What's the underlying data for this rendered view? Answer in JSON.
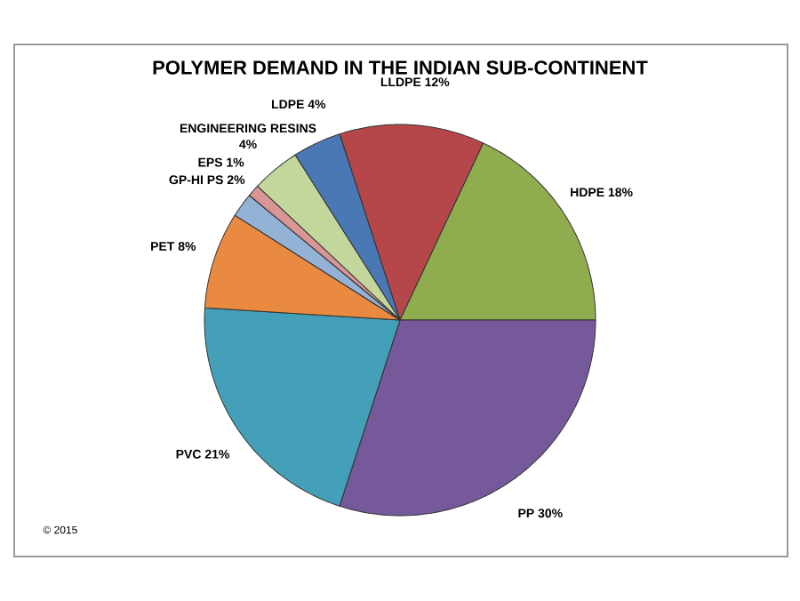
{
  "chart_data": {
    "type": "pie",
    "title": "POLYMER DEMAND IN THE INDIAN SUB-CONTINENT",
    "categories": [
      "LLDPE",
      "HDPE",
      "PP",
      "PVC",
      "PET",
      "GP-HI PS",
      "EPS",
      "ENGINEERING RESINS",
      "LDPE"
    ],
    "values": [
      12,
      18,
      30,
      21,
      8,
      2,
      1,
      4,
      4
    ],
    "value_labels": [
      "12%",
      "18%",
      "30%",
      "21%",
      "8%",
      "2%",
      "1%",
      "4%",
      "4%"
    ],
    "colors": [
      "#b5474a",
      "#8fac4f",
      "#76599a",
      "#449fb8",
      "#e98a40",
      "#94b1d6",
      "#d99694",
      "#c3d69b",
      "#4a78b5"
    ],
    "annotations": [
      "© 2015"
    ]
  }
}
